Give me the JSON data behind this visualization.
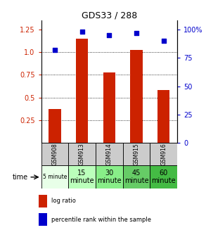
{
  "title": "GDS33 / 288",
  "categories": [
    "GSM908",
    "GSM913",
    "GSM914",
    "GSM915",
    "GSM916"
  ],
  "time_labels": [
    "5 minute",
    "15\nminute",
    "30\nminute",
    "45\nminute",
    "60\nminute"
  ],
  "log_ratio": [
    0.37,
    1.15,
    0.78,
    1.03,
    0.58
  ],
  "percentile_rank": [
    82,
    98,
    95,
    97,
    90
  ],
  "bar_color": "#cc2200",
  "dot_color": "#0000cc",
  "left_yticks": [
    0.25,
    0.5,
    0.75,
    1.0,
    1.25
  ],
  "right_yticks": [
    0,
    25,
    50,
    75,
    100
  ],
  "ylim": [
    0.0,
    1.35
  ],
  "right_ylim": [
    0,
    108
  ],
  "grid_lines": [
    0.25,
    0.5,
    0.75,
    1.0
  ],
  "gsm_colors": [
    "#cccccc",
    "#cccccc",
    "#cccccc",
    "#cccccc",
    "#cccccc"
  ],
  "time_colors": [
    "#e8ffe8",
    "#bbffbb",
    "#88ee88",
    "#66cc66",
    "#44bb44"
  ],
  "bg_color": "#ffffff",
  "time_fontsizes": [
    5.5,
    7,
    7,
    7,
    7
  ],
  "legend_labels": [
    "log ratio",
    "percentile rank within the sample"
  ]
}
